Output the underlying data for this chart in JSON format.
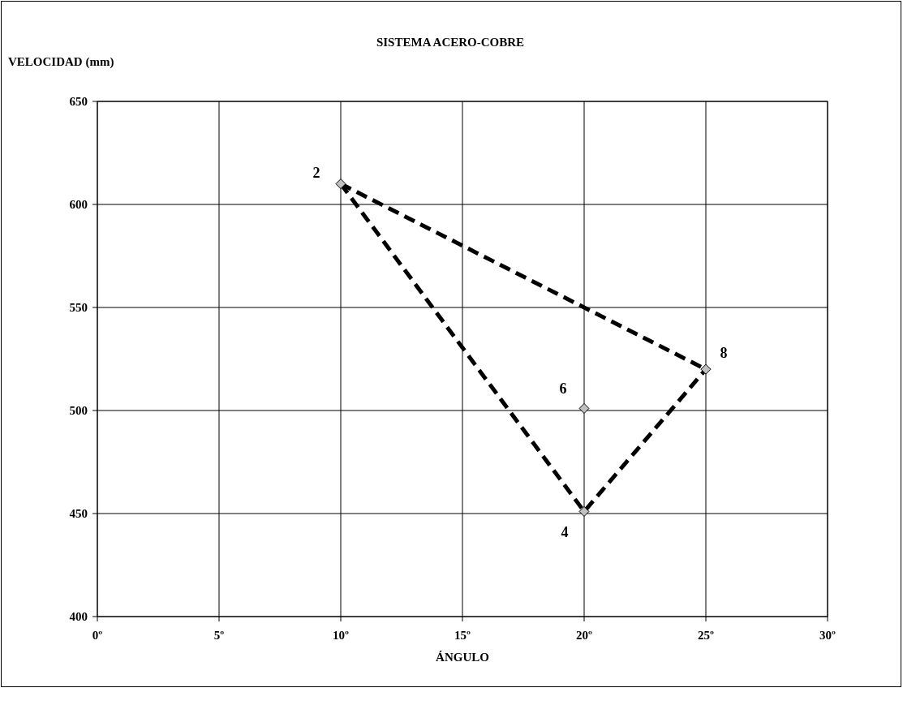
{
  "chart_data": {
    "type": "scatter",
    "title": "SISTEMA ACERO-COBRE",
    "xlabel": "ÁNGULO",
    "ylabel": "VELOCIDAD (mm)",
    "xlim": [
      0,
      30
    ],
    "xticks": [
      {
        "value": 0,
        "label": "0º"
      },
      {
        "value": 5,
        "label": "5º"
      },
      {
        "value": 10,
        "label": "10º"
      },
      {
        "value": 15,
        "label": "15º"
      },
      {
        "value": 20,
        "label": "20º"
      },
      {
        "value": 25,
        "label": "25º"
      },
      {
        "value": 30,
        "label": "30º"
      }
    ],
    "ylim": [
      400,
      650
    ],
    "yticks": [
      400,
      450,
      500,
      550,
      600,
      650
    ],
    "grid": true,
    "series": [
      {
        "type": "line",
        "color": "#000000",
        "line_style": "dashed",
        "marker": "none",
        "x": [
          10,
          25
        ],
        "values": [
          610,
          520
        ]
      },
      {
        "type": "line",
        "color": "#000000",
        "line_style": "dashed",
        "marker": "none",
        "x": [
          10,
          20,
          25
        ],
        "values": [
          610,
          451,
          520
        ]
      },
      {
        "color": "#c0c0c0",
        "marker": "diamond",
        "x": [
          10,
          20,
          20,
          25
        ],
        "values": [
          610,
          451,
          501,
          520
        ]
      }
    ],
    "annotations": [
      {
        "text": "2",
        "x": 10,
        "y": 610
      },
      {
        "text": "4",
        "x": 20,
        "y": 451
      },
      {
        "text": "6",
        "x": 20,
        "y": 501
      },
      {
        "text": "8",
        "x": 25,
        "y": 520
      }
    ]
  }
}
